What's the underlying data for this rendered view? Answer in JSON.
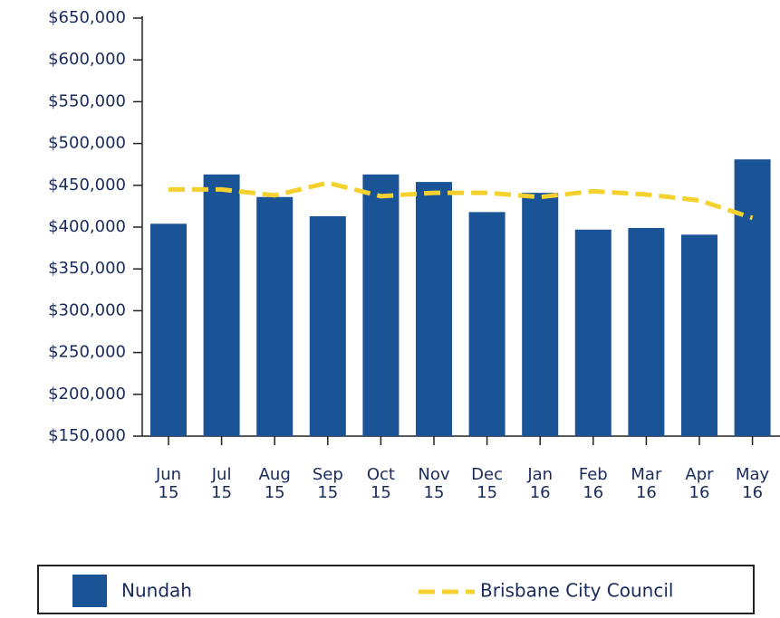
{
  "chart_data": {
    "type": "bar",
    "categories": [
      "Jun 15",
      "Jul 15",
      "Aug 15",
      "Sep 15",
      "Oct 15",
      "Nov 15",
      "Dec 15",
      "Jan 16",
      "Feb 16",
      "Mar 16",
      "Apr 16",
      "May 16"
    ],
    "series": [
      {
        "name": "Nundah",
        "color": "#1a5496",
        "values": [
          404000,
          463000,
          436000,
          413000,
          463000,
          454000,
          418000,
          441000,
          397000,
          399000,
          391000,
          481000
        ]
      },
      {
        "name": "Brisbane City Council",
        "color": "#f5d130",
        "type": "line",
        "dashed": true,
        "values": [
          445000,
          445000,
          438000,
          453000,
          437000,
          441000,
          441000,
          436000,
          443000,
          439000,
          432000,
          411000
        ]
      }
    ],
    "ylim": [
      150000,
      650000
    ],
    "yticks": [
      {
        "value": 150000,
        "label": "$150,000"
      },
      {
        "value": 200000,
        "label": "$200,000"
      },
      {
        "value": 250000,
        "label": "$250,000"
      },
      {
        "value": 300000,
        "label": "$300,000"
      },
      {
        "value": 350000,
        "label": "$350,000"
      },
      {
        "value": 400000,
        "label": "$400,000"
      },
      {
        "value": 450000,
        "label": "$450,000"
      },
      {
        "value": 500000,
        "label": "$500,000"
      },
      {
        "value": 550000,
        "label": "$550,000"
      },
      {
        "value": 600000,
        "label": "$600,000"
      },
      {
        "value": 650000,
        "label": "$650,000"
      }
    ],
    "grid": false,
    "legend": "bottom"
  }
}
